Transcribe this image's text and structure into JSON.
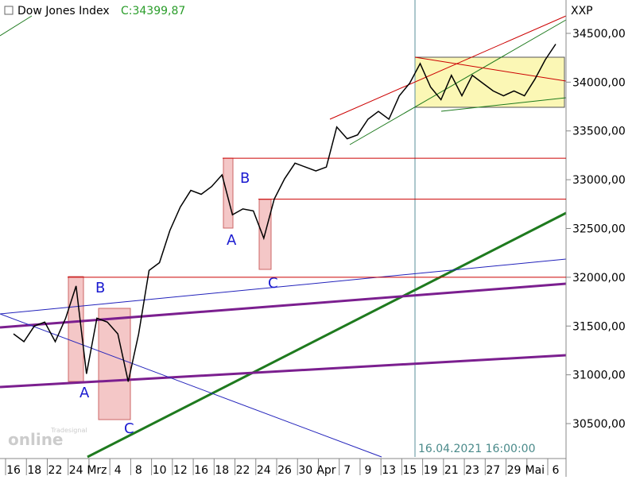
{
  "chart_data": {
    "type": "line",
    "title": "Dow Jones Index",
    "subtitle": "C:34399,87",
    "axis_label": "XXP",
    "timestamp": "16.04.2021 16:00:00",
    "logo": "online",
    "logo_small": "Tradesignal",
    "categories": [
      "16",
      null,
      "18",
      null,
      "22",
      null,
      "24",
      null,
      "Mrz",
      null,
      "4",
      null,
      "8",
      null,
      "10",
      null,
      "12",
      null,
      "16",
      null,
      "18",
      null,
      "22",
      null,
      "24",
      null,
      "26",
      null,
      "30",
      null,
      "Apr",
      null,
      "7",
      null,
      "9",
      null,
      "13",
      null,
      "15",
      null,
      "19",
      null,
      "21",
      null,
      "23",
      null,
      "27",
      null,
      "29",
      null,
      "Mai",
      null,
      "6"
    ],
    "series": [
      {
        "name": "Dow Jones Index",
        "color": "#000000",
        "values": [
          31420,
          31340,
          31500,
          31540,
          31340,
          31580,
          31910,
          31010,
          31580,
          31540,
          31420,
          30930,
          31420,
          32070,
          32150,
          32480,
          32720,
          32890,
          32850,
          32930,
          33050,
          32640,
          32700,
          32680,
          32400,
          32800,
          33010,
          33170,
          33130,
          33090,
          33130,
          33540,
          33420,
          33460,
          33620,
          33700,
          33620,
          33860,
          33990,
          34190,
          33950,
          33820,
          34070,
          33860,
          34070,
          33990,
          33910,
          33860,
          33910,
          33860,
          34030,
          34230,
          34390
        ]
      }
    ],
    "levels": [
      33220,
      32800,
      32000
    ],
    "level_color": "#cc0000",
    "annotations": [
      "A",
      "B",
      "C",
      "A",
      "B",
      "C"
    ],
    "ylim": [
      30158,
      34842
    ],
    "yticks": [
      {
        "value": 30500,
        "label": "30500,00"
      },
      {
        "value": 31000,
        "label": "31000,00"
      },
      {
        "value": 31500,
        "label": "31500,00"
      },
      {
        "value": 32000,
        "label": "32000,00"
      },
      {
        "value": 32500,
        "label": "32500,00"
      },
      {
        "value": 33000,
        "label": "33000,00"
      },
      {
        "value": 33500,
        "label": "33500,00"
      },
      {
        "value": 34000,
        "label": "34000,00"
      },
      {
        "value": 34500,
        "label": "34500,00"
      }
    ]
  }
}
